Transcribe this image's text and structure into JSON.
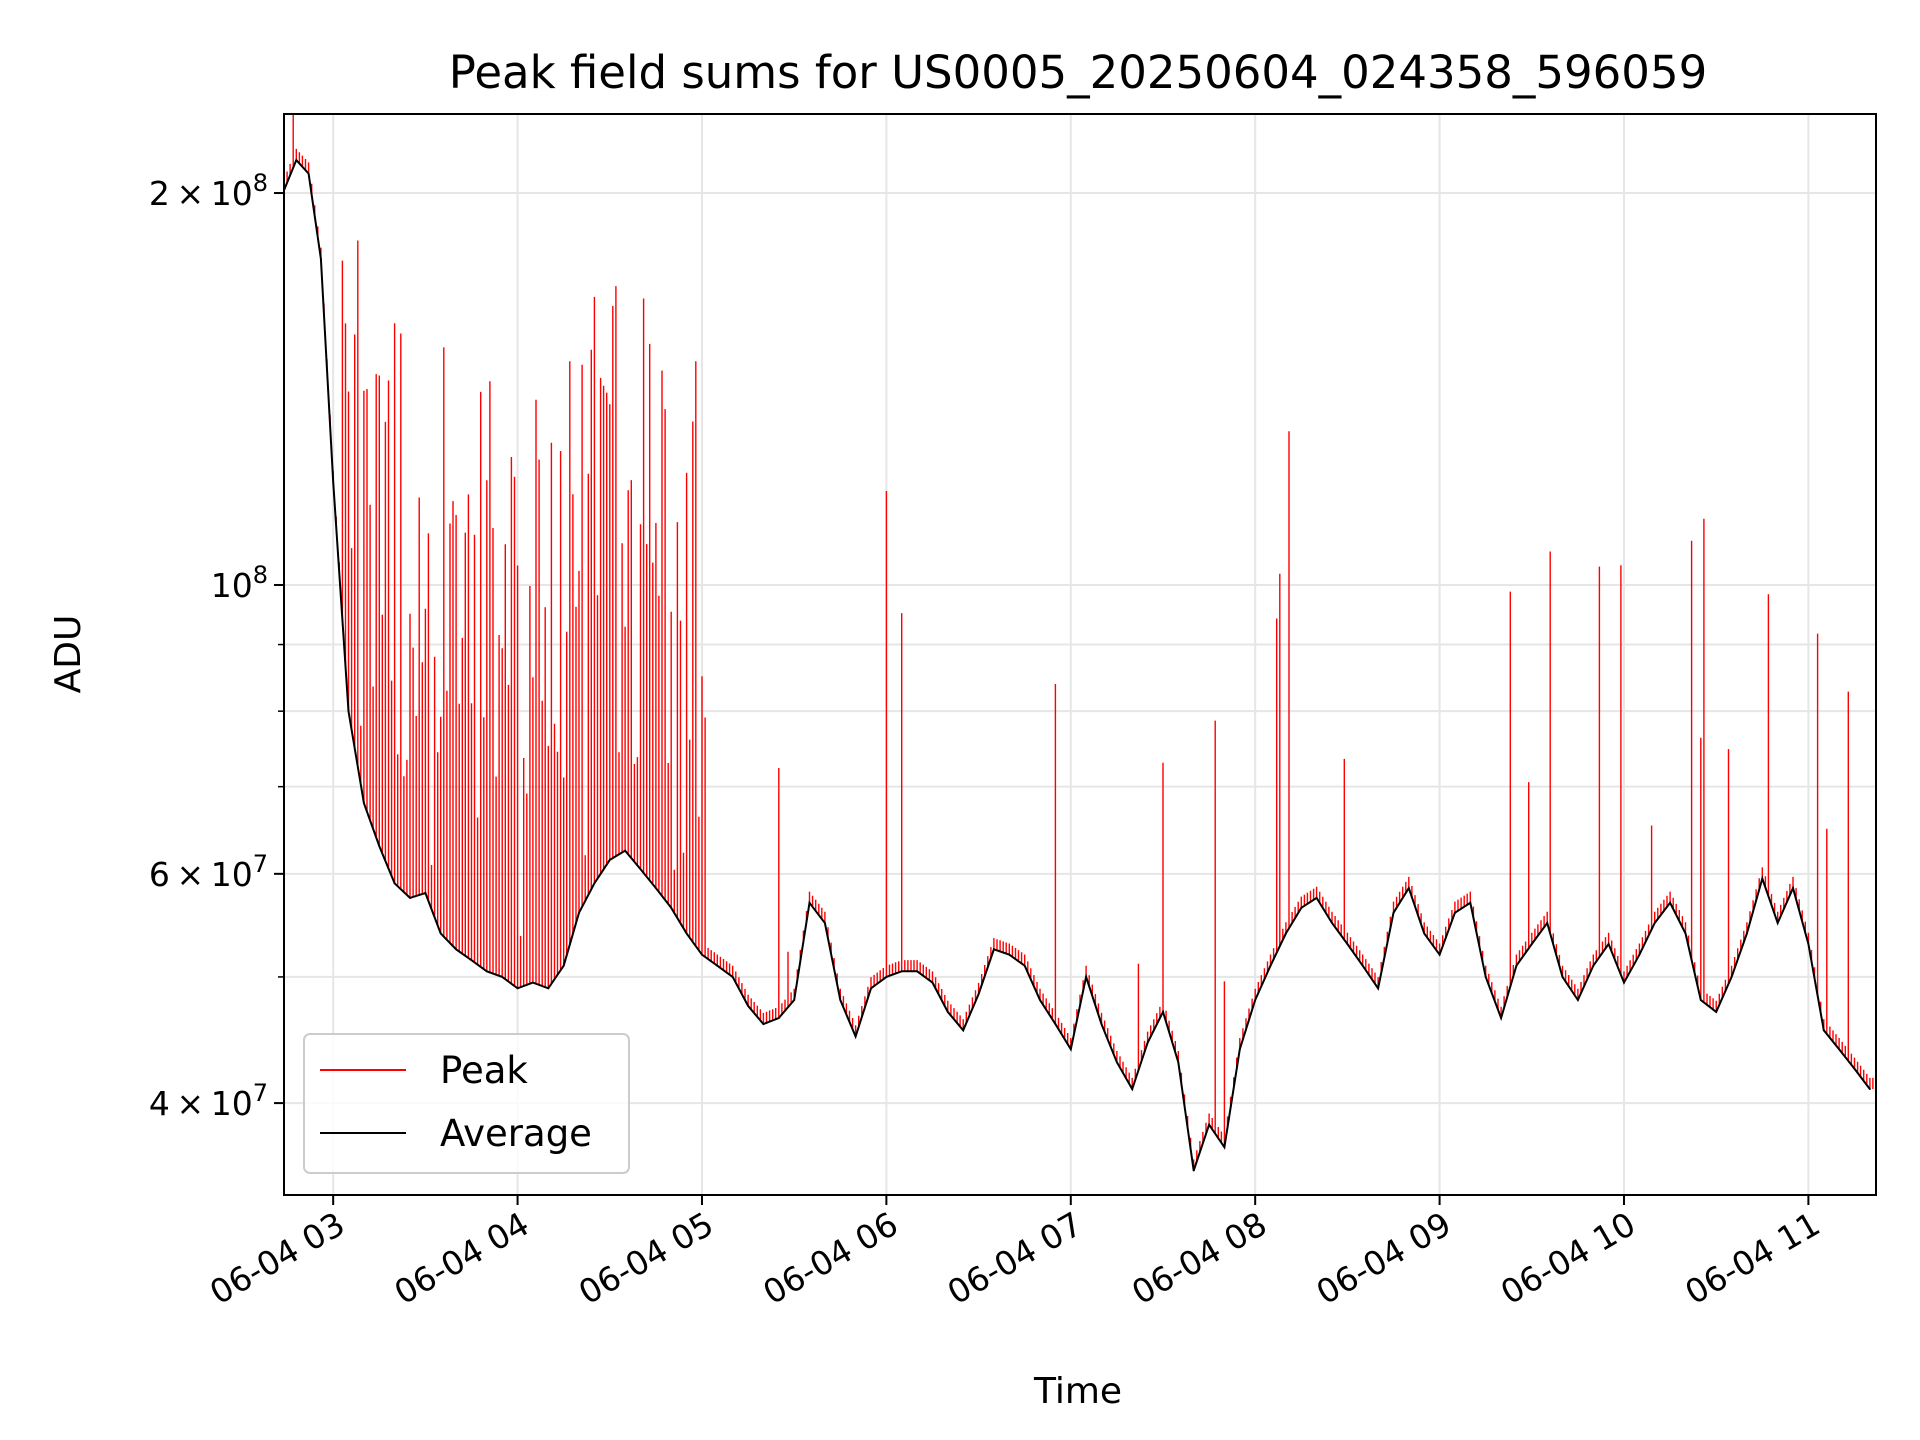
{
  "chart_data": {
    "type": "line",
    "title": "Peak field sums for US0005_20250604_024358_596059",
    "xlabel": "Time",
    "ylabel": "ADU",
    "y_scale": "log",
    "xlim": [
      "2025-06-04 02:44",
      "2025-06-04 11:22"
    ],
    "ylim": [
      34000000,
      230000000
    ],
    "grid": true,
    "legend_position": "lower-left",
    "x_ticks": [
      {
        "t": "2025-06-04 03:00",
        "label": "06-04 03"
      },
      {
        "t": "2025-06-04 04:00",
        "label": "06-04 04"
      },
      {
        "t": "2025-06-04 05:00",
        "label": "06-04 05"
      },
      {
        "t": "2025-06-04 06:00",
        "label": "06-04 06"
      },
      {
        "t": "2025-06-04 07:00",
        "label": "06-04 07"
      },
      {
        "t": "2025-06-04 08:00",
        "label": "06-04 08"
      },
      {
        "t": "2025-06-04 09:00",
        "label": "06-04 09"
      },
      {
        "t": "2025-06-04 10:00",
        "label": "06-04 10"
      },
      {
        "t": "2025-06-04 11:00",
        "label": "06-04 11"
      }
    ],
    "y_ticks": [
      {
        "value": 40000000,
        "mantissa": "4",
        "exp": "7"
      },
      {
        "value": 60000000,
        "mantissa": "6",
        "exp": "7"
      },
      {
        "value": 100000000,
        "mantissa": "",
        "exp": "8"
      },
      {
        "value": 200000000,
        "mantissa": "2",
        "exp": "8"
      }
    ],
    "y_minor_ticks": [
      50000000,
      70000000,
      80000000,
      90000000
    ],
    "series": [
      {
        "name": "Average",
        "color": "#000000",
        "points": [
          [
            "2025-06-04 02:44",
            201000000
          ],
          [
            "2025-06-04 02:48",
            212000000
          ],
          [
            "2025-06-04 02:52",
            207000000
          ],
          [
            "2025-06-04 02:56",
            178000000
          ],
          [
            "2025-06-04 03:00",
            120000000
          ],
          [
            "2025-06-04 03:05",
            80000000
          ],
          [
            "2025-06-04 03:10",
            68000000
          ],
          [
            "2025-06-04 03:15",
            63000000
          ],
          [
            "2025-06-04 03:20",
            59000000
          ],
          [
            "2025-06-04 03:25",
            57500000
          ],
          [
            "2025-06-04 03:30",
            58000000
          ],
          [
            "2025-06-04 03:35",
            54000000
          ],
          [
            "2025-06-04 03:40",
            52500000
          ],
          [
            "2025-06-04 03:45",
            51500000
          ],
          [
            "2025-06-04 03:50",
            50500000
          ],
          [
            "2025-06-04 03:55",
            50000000
          ],
          [
            "2025-06-04 04:00",
            49000000
          ],
          [
            "2025-06-04 04:05",
            49500000
          ],
          [
            "2025-06-04 04:10",
            49000000
          ],
          [
            "2025-06-04 04:15",
            51000000
          ],
          [
            "2025-06-04 04:20",
            56000000
          ],
          [
            "2025-06-04 04:25",
            59000000
          ],
          [
            "2025-06-04 04:30",
            61500000
          ],
          [
            "2025-06-04 04:35",
            62500000
          ],
          [
            "2025-06-04 04:40",
            60500000
          ],
          [
            "2025-06-04 04:45",
            58500000
          ],
          [
            "2025-06-04 04:50",
            56500000
          ],
          [
            "2025-06-04 04:55",
            54000000
          ],
          [
            "2025-06-04 05:00",
            52000000
          ],
          [
            "2025-06-04 05:05",
            51000000
          ],
          [
            "2025-06-04 05:10",
            50000000
          ],
          [
            "2025-06-04 05:15",
            47500000
          ],
          [
            "2025-06-04 05:20",
            46000000
          ],
          [
            "2025-06-04 05:25",
            46500000
          ],
          [
            "2025-06-04 05:30",
            48000000
          ],
          [
            "2025-06-04 05:35",
            57000000
          ],
          [
            "2025-06-04 05:40",
            55000000
          ],
          [
            "2025-06-04 05:45",
            48000000
          ],
          [
            "2025-06-04 05:50",
            45000000
          ],
          [
            "2025-06-04 05:55",
            49000000
          ],
          [
            "2025-06-04 06:00",
            50000000
          ],
          [
            "2025-06-04 06:05",
            50500000
          ],
          [
            "2025-06-04 06:10",
            50500000
          ],
          [
            "2025-06-04 06:15",
            49500000
          ],
          [
            "2025-06-04 06:20",
            47000000
          ],
          [
            "2025-06-04 06:25",
            45500000
          ],
          [
            "2025-06-04 06:30",
            48500000
          ],
          [
            "2025-06-04 06:35",
            52500000
          ],
          [
            "2025-06-04 06:40",
            52000000
          ],
          [
            "2025-06-04 06:45",
            51000000
          ],
          [
            "2025-06-04 06:50",
            48000000
          ],
          [
            "2025-06-04 06:55",
            46000000
          ],
          [
            "2025-06-04 07:00",
            44000000
          ],
          [
            "2025-06-04 07:05",
            50000000
          ],
          [
            "2025-06-04 07:10",
            46000000
          ],
          [
            "2025-06-04 07:15",
            43000000
          ],
          [
            "2025-06-04 07:20",
            41000000
          ],
          [
            "2025-06-04 07:25",
            44500000
          ],
          [
            "2025-06-04 07:30",
            47000000
          ],
          [
            "2025-06-04 07:35",
            43000000
          ],
          [
            "2025-06-04 07:40",
            35500000
          ],
          [
            "2025-06-04 07:45",
            38500000
          ],
          [
            "2025-06-04 07:50",
            37000000
          ],
          [
            "2025-06-04 07:55",
            44000000
          ],
          [
            "2025-06-04 08:00",
            48000000
          ],
          [
            "2025-06-04 08:05",
            51000000
          ],
          [
            "2025-06-04 08:10",
            54000000
          ],
          [
            "2025-06-04 08:15",
            56500000
          ],
          [
            "2025-06-04 08:20",
            57500000
          ],
          [
            "2025-06-04 08:25",
            55000000
          ],
          [
            "2025-06-04 08:30",
            53000000
          ],
          [
            "2025-06-04 08:35",
            51000000
          ],
          [
            "2025-06-04 08:40",
            49000000
          ],
          [
            "2025-06-04 08:45",
            56000000
          ],
          [
            "2025-06-04 08:50",
            58500000
          ],
          [
            "2025-06-04 08:55",
            54000000
          ],
          [
            "2025-06-04 09:00",
            52000000
          ],
          [
            "2025-06-04 09:05",
            56000000
          ],
          [
            "2025-06-04 09:10",
            57000000
          ],
          [
            "2025-06-04 09:15",
            50000000
          ],
          [
            "2025-06-04 09:20",
            46500000
          ],
          [
            "2025-06-04 09:25",
            51000000
          ],
          [
            "2025-06-04 09:30",
            53000000
          ],
          [
            "2025-06-04 09:35",
            55000000
          ],
          [
            "2025-06-04 09:40",
            50000000
          ],
          [
            "2025-06-04 09:45",
            48000000
          ],
          [
            "2025-06-04 09:50",
            51000000
          ],
          [
            "2025-06-04 09:55",
            53000000
          ],
          [
            "2025-06-04 10:00",
            49500000
          ],
          [
            "2025-06-04 10:05",
            52000000
          ],
          [
            "2025-06-04 10:10",
            55000000
          ],
          [
            "2025-06-04 10:15",
            57000000
          ],
          [
            "2025-06-04 10:20",
            54000000
          ],
          [
            "2025-06-04 10:25",
            48000000
          ],
          [
            "2025-06-04 10:30",
            47000000
          ],
          [
            "2025-06-04 10:35",
            50000000
          ],
          [
            "2025-06-04 10:40",
            54000000
          ],
          [
            "2025-06-04 10:45",
            59500000
          ],
          [
            "2025-06-04 10:50",
            55000000
          ],
          [
            "2025-06-04 10:55",
            58500000
          ],
          [
            "2025-06-04 11:00",
            53000000
          ],
          [
            "2025-06-04 11:05",
            45500000
          ],
          [
            "2025-06-04 11:10",
            44000000
          ],
          [
            "2025-06-04 11:15",
            42500000
          ],
          [
            "2025-06-04 11:20",
            41000000
          ]
        ]
      }
    ]
  },
  "legend": {
    "peak_label": "Peak",
    "average_label": "Average",
    "peak_color": "#ff0000",
    "average_color": "#000000"
  }
}
